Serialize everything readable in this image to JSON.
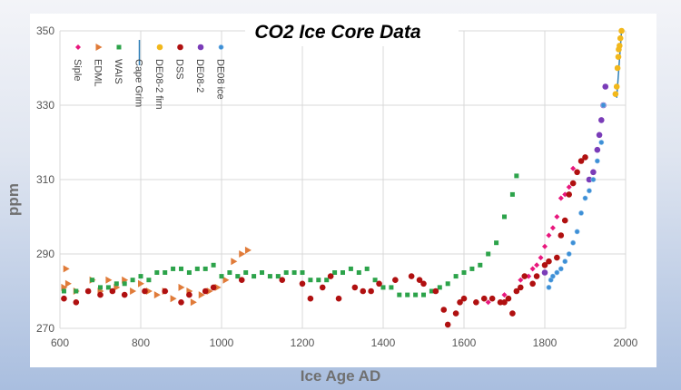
{
  "chart_data": {
    "type": "scatter",
    "title": "CO2 Ice Core Data",
    "xlabel": "Ice Age AD",
    "ylabel": "ppm",
    "xlim": [
      600,
      2000
    ],
    "ylim": [
      270,
      350
    ],
    "xticks": [
      600,
      800,
      1000,
      1200,
      1400,
      1600,
      1800,
      2000
    ],
    "yticks": [
      270,
      290,
      310,
      330,
      350
    ],
    "grid": true,
    "legend_placement": "top-left",
    "series": [
      {
        "name": "Siple",
        "marker": "diamond",
        "color": "#e8177d",
        "points": [
          [
            1660,
            277
          ],
          [
            1700,
            279
          ],
          [
            1740,
            283
          ],
          [
            1760,
            284
          ],
          [
            1770,
            286
          ],
          [
            1780,
            287
          ],
          [
            1790,
            289
          ],
          [
            1800,
            292
          ],
          [
            1810,
            295
          ],
          [
            1820,
            297
          ],
          [
            1830,
            300
          ],
          [
            1840,
            305
          ],
          [
            1850,
            306
          ],
          [
            1860,
            308
          ],
          [
            1870,
            313
          ]
        ]
      },
      {
        "name": "EDML",
        "marker": "triangle",
        "color": "#e07b39",
        "points": [
          [
            610,
            281
          ],
          [
            615,
            286
          ],
          [
            620,
            282
          ],
          [
            640,
            280
          ],
          [
            680,
            283
          ],
          [
            700,
            280
          ],
          [
            720,
            283
          ],
          [
            740,
            281
          ],
          [
            760,
            283
          ],
          [
            780,
            280
          ],
          [
            800,
            282
          ],
          [
            820,
            280
          ],
          [
            840,
            279
          ],
          [
            860,
            280
          ],
          [
            880,
            278
          ],
          [
            900,
            281
          ],
          [
            920,
            280
          ],
          [
            930,
            277
          ],
          [
            950,
            279
          ],
          [
            970,
            280
          ],
          [
            990,
            281
          ],
          [
            1010,
            283
          ],
          [
            1030,
            288
          ],
          [
            1050,
            290
          ],
          [
            1065,
            291
          ]
        ]
      },
      {
        "name": "WAIS",
        "marker": "square",
        "color": "#2ca34a",
        "points": [
          [
            610,
            280
          ],
          [
            640,
            280
          ],
          [
            680,
            283
          ],
          [
            700,
            281
          ],
          [
            720,
            281
          ],
          [
            740,
            282
          ],
          [
            760,
            282
          ],
          [
            780,
            283
          ],
          [
            800,
            284
          ],
          [
            820,
            283
          ],
          [
            840,
            285
          ],
          [
            860,
            285
          ],
          [
            880,
            286
          ],
          [
            900,
            286
          ],
          [
            920,
            285
          ],
          [
            940,
            286
          ],
          [
            960,
            286
          ],
          [
            980,
            287
          ],
          [
            1000,
            284
          ],
          [
            1020,
            285
          ],
          [
            1040,
            284
          ],
          [
            1060,
            285
          ],
          [
            1080,
            284
          ],
          [
            1100,
            285
          ],
          [
            1120,
            284
          ],
          [
            1140,
            284
          ],
          [
            1160,
            285
          ],
          [
            1180,
            285
          ],
          [
            1200,
            285
          ],
          [
            1220,
            283
          ],
          [
            1240,
            283
          ],
          [
            1260,
            283
          ],
          [
            1280,
            285
          ],
          [
            1300,
            285
          ],
          [
            1320,
            286
          ],
          [
            1340,
            285
          ],
          [
            1360,
            286
          ],
          [
            1380,
            283
          ],
          [
            1400,
            281
          ],
          [
            1420,
            281
          ],
          [
            1440,
            279
          ],
          [
            1460,
            279
          ],
          [
            1480,
            279
          ],
          [
            1500,
            279
          ],
          [
            1520,
            280
          ],
          [
            1540,
            281
          ],
          [
            1560,
            282
          ],
          [
            1580,
            284
          ],
          [
            1600,
            285
          ],
          [
            1620,
            286
          ],
          [
            1640,
            287
          ],
          [
            1660,
            290
          ],
          [
            1680,
            293
          ],
          [
            1700,
            300
          ],
          [
            1720,
            306
          ],
          [
            1730,
            311
          ]
        ]
      },
      {
        "name": "Cape Grim",
        "marker": "line",
        "color": "#2e7fb8",
        "points": [
          [
            1978,
            332
          ],
          [
            1982,
            338
          ],
          [
            1986,
            344
          ],
          [
            1990,
            350
          ]
        ]
      },
      {
        "name": "DE08-2 firn",
        "marker": "circle",
        "color": "#f2b81c",
        "points": [
          [
            1975,
            333
          ],
          [
            1978,
            335
          ],
          [
            1980,
            340
          ],
          [
            1982,
            343
          ],
          [
            1983,
            345
          ],
          [
            1985,
            346
          ],
          [
            1987,
            348
          ],
          [
            1990,
            350
          ]
        ]
      },
      {
        "name": "DSS",
        "marker": "circle",
        "color": "#b01010",
        "points": [
          [
            610,
            278
          ],
          [
            640,
            277
          ],
          [
            670,
            280
          ],
          [
            700,
            279
          ],
          [
            730,
            280
          ],
          [
            760,
            279
          ],
          [
            810,
            280
          ],
          [
            860,
            280
          ],
          [
            900,
            277
          ],
          [
            920,
            279
          ],
          [
            960,
            280
          ],
          [
            980,
            281
          ],
          [
            1050,
            283
          ],
          [
            1150,
            283
          ],
          [
            1200,
            282
          ],
          [
            1220,
            278
          ],
          [
            1250,
            281
          ],
          [
            1270,
            284
          ],
          [
            1290,
            278
          ],
          [
            1330,
            281
          ],
          [
            1350,
            280
          ],
          [
            1370,
            280
          ],
          [
            1390,
            282
          ],
          [
            1430,
            283
          ],
          [
            1470,
            284
          ],
          [
            1490,
            283
          ],
          [
            1500,
            282
          ],
          [
            1530,
            280
          ],
          [
            1550,
            275
          ],
          [
            1560,
            271
          ],
          [
            1580,
            274
          ],
          [
            1590,
            277
          ],
          [
            1600,
            278
          ],
          [
            1630,
            277
          ],
          [
            1650,
            278
          ],
          [
            1670,
            278
          ],
          [
            1690,
            277
          ],
          [
            1700,
            277
          ],
          [
            1710,
            278
          ],
          [
            1720,
            274
          ],
          [
            1730,
            280
          ],
          [
            1740,
            281
          ],
          [
            1750,
            284
          ],
          [
            1770,
            282
          ],
          [
            1780,
            284
          ],
          [
            1800,
            287
          ],
          [
            1810,
            288
          ],
          [
            1830,
            289
          ],
          [
            1840,
            295
          ],
          [
            1850,
            299
          ],
          [
            1860,
            306
          ],
          [
            1870,
            309
          ],
          [
            1880,
            312
          ],
          [
            1890,
            315
          ],
          [
            1900,
            316
          ]
        ]
      },
      {
        "name": "DE08-2",
        "marker": "circle",
        "color": "#7a3cb8",
        "points": [
          [
            1800,
            285
          ],
          [
            1910,
            310
          ],
          [
            1920,
            312
          ],
          [
            1930,
            318
          ],
          [
            1935,
            322
          ],
          [
            1940,
            326
          ],
          [
            1945,
            330
          ],
          [
            1950,
            335
          ]
        ]
      },
      {
        "name": "DE08 ice",
        "marker": "circle-small",
        "color": "#3d8fd6",
        "points": [
          [
            1810,
            281
          ],
          [
            1815,
            283
          ],
          [
            1820,
            284
          ],
          [
            1830,
            285
          ],
          [
            1840,
            286
          ],
          [
            1850,
            288
          ],
          [
            1860,
            290
          ],
          [
            1870,
            293
          ],
          [
            1880,
            296
          ],
          [
            1890,
            301
          ],
          [
            1900,
            305
          ],
          [
            1910,
            307
          ],
          [
            1920,
            310
          ],
          [
            1930,
            315
          ],
          [
            1940,
            320
          ],
          [
            1945,
            330
          ]
        ]
      }
    ]
  }
}
